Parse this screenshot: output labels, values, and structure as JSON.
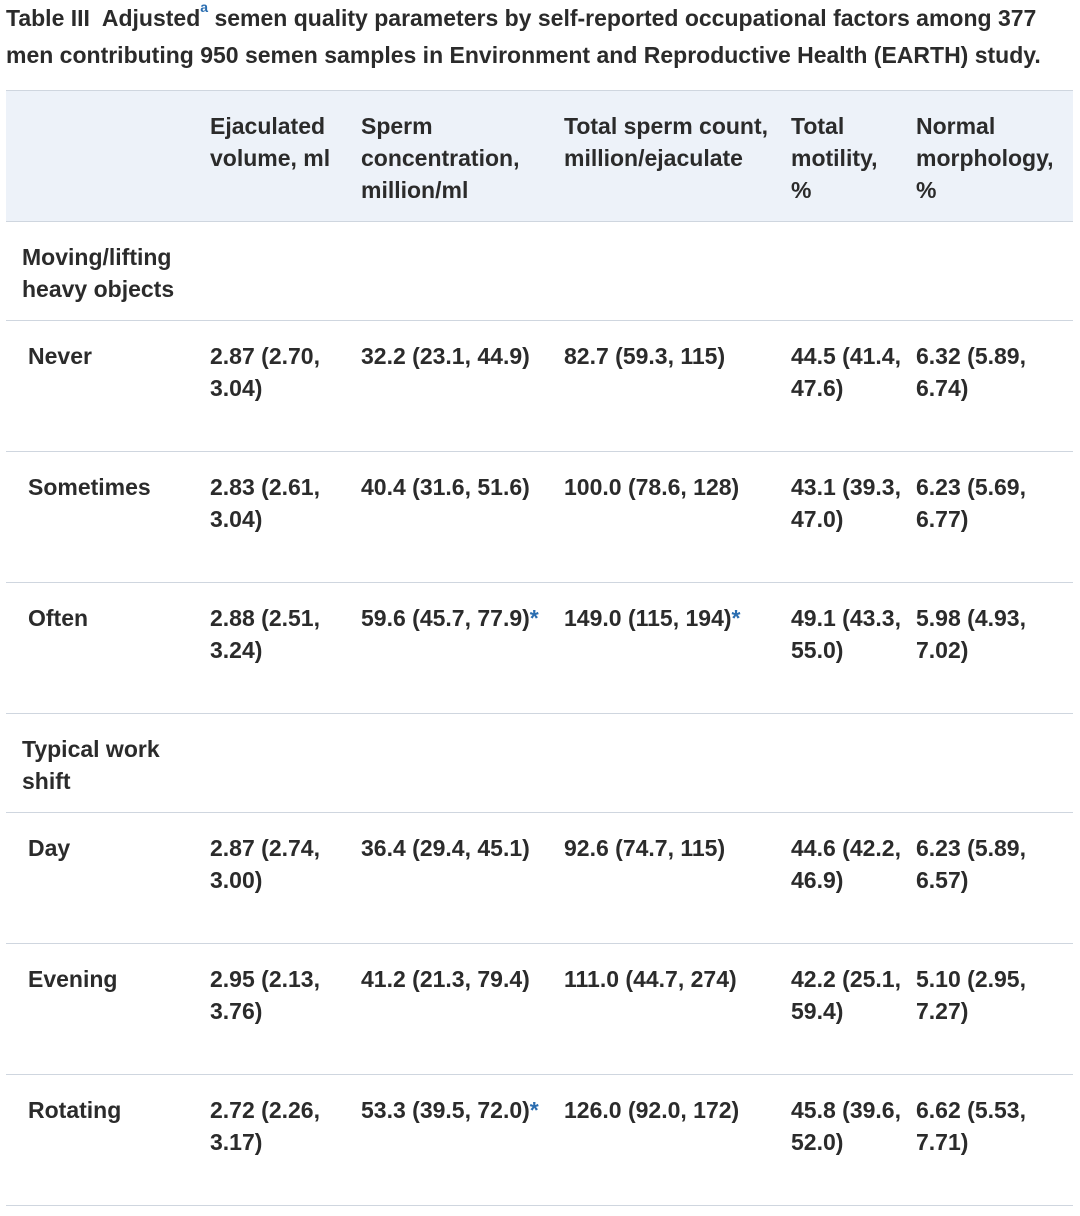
{
  "caption": {
    "label": "Table III",
    "text_before": "Adjusted",
    "footnote_marker": "a",
    "text_after": " semen quality parameters by self-reported occupational factors among 377 men contributing 950 semen samples in Environment and Reproductive Health (EARTH) study."
  },
  "table": {
    "headers": [
      "",
      "Ejaculated volume, ml",
      "Sperm concentration, million/ml",
      "Total sperm count, million/ejaculate",
      "Total motility, %",
      "Normal morphology, %"
    ],
    "significance_marker": "*",
    "sections": [
      {
        "title": "Moving/lifting heavy objects",
        "rows": [
          {
            "label": "Never",
            "cells": [
              {
                "v": "2.87 (2.70, 3.04)",
                "s": ""
              },
              {
                "v": "32.2 (23.1, 44.9)",
                "s": ""
              },
              {
                "v": "82.7 (59.3, 115)",
                "s": ""
              },
              {
                "v": "44.5 (41.4, 47.6)",
                "s": ""
              },
              {
                "v": "6.32 (5.89, 6.74)",
                "s": ""
              }
            ]
          },
          {
            "label": "Sometimes",
            "cells": [
              {
                "v": "2.83 (2.61, 3.04)",
                "s": ""
              },
              {
                "v": "40.4 (31.6, 51.6)",
                "s": ""
              },
              {
                "v": "100.0 (78.6, 128)",
                "s": ""
              },
              {
                "v": "43.1 (39.3, 47.0)",
                "s": ""
              },
              {
                "v": "6.23 (5.69, 6.77)",
                "s": ""
              }
            ]
          },
          {
            "label": "Often",
            "cells": [
              {
                "v": "2.88 (2.51, 3.24)",
                "s": ""
              },
              {
                "v": "59.6 (45.7, 77.9)",
                "s": "*"
              },
              {
                "v": "149.0 (115, 194)",
                "s": "*"
              },
              {
                "v": "49.1 (43.3, 55.0)",
                "s": ""
              },
              {
                "v": "5.98 (4.93, 7.02)",
                "s": ""
              }
            ]
          }
        ]
      },
      {
        "title": "Typical work shift",
        "rows": [
          {
            "label": "Day",
            "cells": [
              {
                "v": "2.87 (2.74, 3.00)",
                "s": ""
              },
              {
                "v": "36.4 (29.4, 45.1)",
                "s": ""
              },
              {
                "v": "92.6 (74.7, 115)",
                "s": ""
              },
              {
                "v": "44.6 (42.2, 46.9)",
                "s": ""
              },
              {
                "v": "6.23 (5.89, 6.57)",
                "s": ""
              }
            ]
          },
          {
            "label": "Evening",
            "cells": [
              {
                "v": "2.95 (2.13, 3.76)",
                "s": ""
              },
              {
                "v": "41.2 (21.3, 79.4)",
                "s": ""
              },
              {
                "v": "111.0 (44.7, 274)",
                "s": ""
              },
              {
                "v": "42.2 (25.1, 59.4)",
                "s": ""
              },
              {
                "v": "5.10 (2.95, 7.27)",
                "s": ""
              }
            ]
          },
          {
            "label": "Rotating",
            "cells": [
              {
                "v": "2.72 (2.26, 3.17)",
                "s": ""
              },
              {
                "v": "53.3 (39.5, 72.0)",
                "s": "*"
              },
              {
                "v": "126.0 (92.0, 172)",
                "s": ""
              },
              {
                "v": "45.8 (39.6, 52.0)",
                "s": ""
              },
              {
                "v": "6.62 (5.53, 7.71)",
                "s": ""
              }
            ]
          }
        ]
      }
    ]
  },
  "colors": {
    "header_bg": "#edf2f9",
    "border": "#cfd6df",
    "accent": "#2a6db0",
    "text": "#2b2b2b"
  }
}
